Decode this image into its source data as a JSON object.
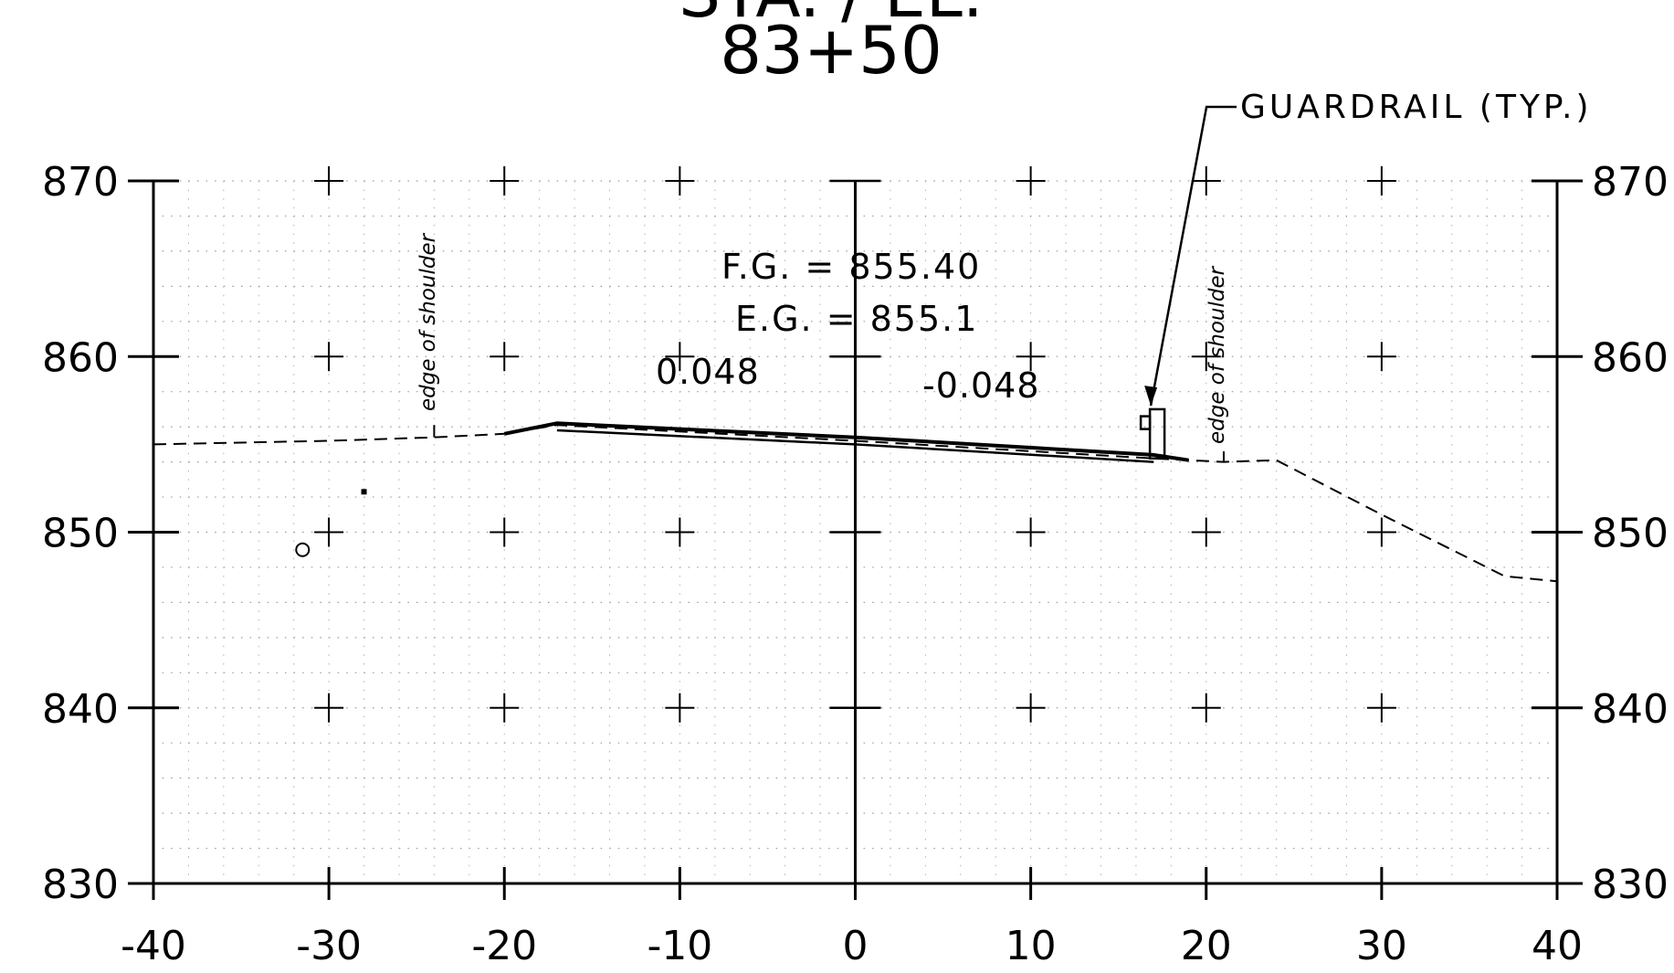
{
  "drawing": {
    "station_title_partial": "STA. / EL.",
    "station": "83+50",
    "fg_label": "F.G. = 855.40",
    "eg_label": "E.G. = 855.1",
    "slope_left": "0.048",
    "slope_right": "-0.048",
    "shoulder_left_label": "edge of shoulder",
    "shoulder_right_label": "edge of shoulder",
    "guardrail_label": "GUARDRAIL (TYP.)"
  },
  "chart_data": {
    "type": "line",
    "x_ticks": [
      "-40",
      "-30",
      "-20",
      "-10",
      "0",
      "10",
      "20",
      "30",
      "40"
    ],
    "y_ticks": [
      "830",
      "840",
      "850",
      "860",
      "870"
    ],
    "xlim": [
      -40,
      40
    ],
    "ylim": [
      830,
      870
    ],
    "grid": true,
    "series": [
      {
        "values": [
          [
            -40,
            855.0
          ],
          [
            -30,
            855.2
          ],
          [
            -24,
            855.4
          ],
          [
            -20,
            855.6
          ],
          [
            -17,
            856.1
          ],
          [
            0,
            855.2
          ],
          [
            17,
            854.2
          ],
          [
            19,
            854.1
          ],
          [
            21,
            854.0
          ],
          [
            24,
            854.1
          ],
          [
            30,
            851.0
          ],
          [
            37,
            847.5
          ],
          [
            40,
            847.2
          ]
        ]
      },
      {
        "values": [
          [
            -20,
            855.6
          ],
          [
            -17,
            856.2
          ],
          [
            0,
            855.4
          ],
          [
            17,
            854.4
          ],
          [
            19,
            854.1
          ]
        ]
      }
    ],
    "guardrail_x": 17
  }
}
